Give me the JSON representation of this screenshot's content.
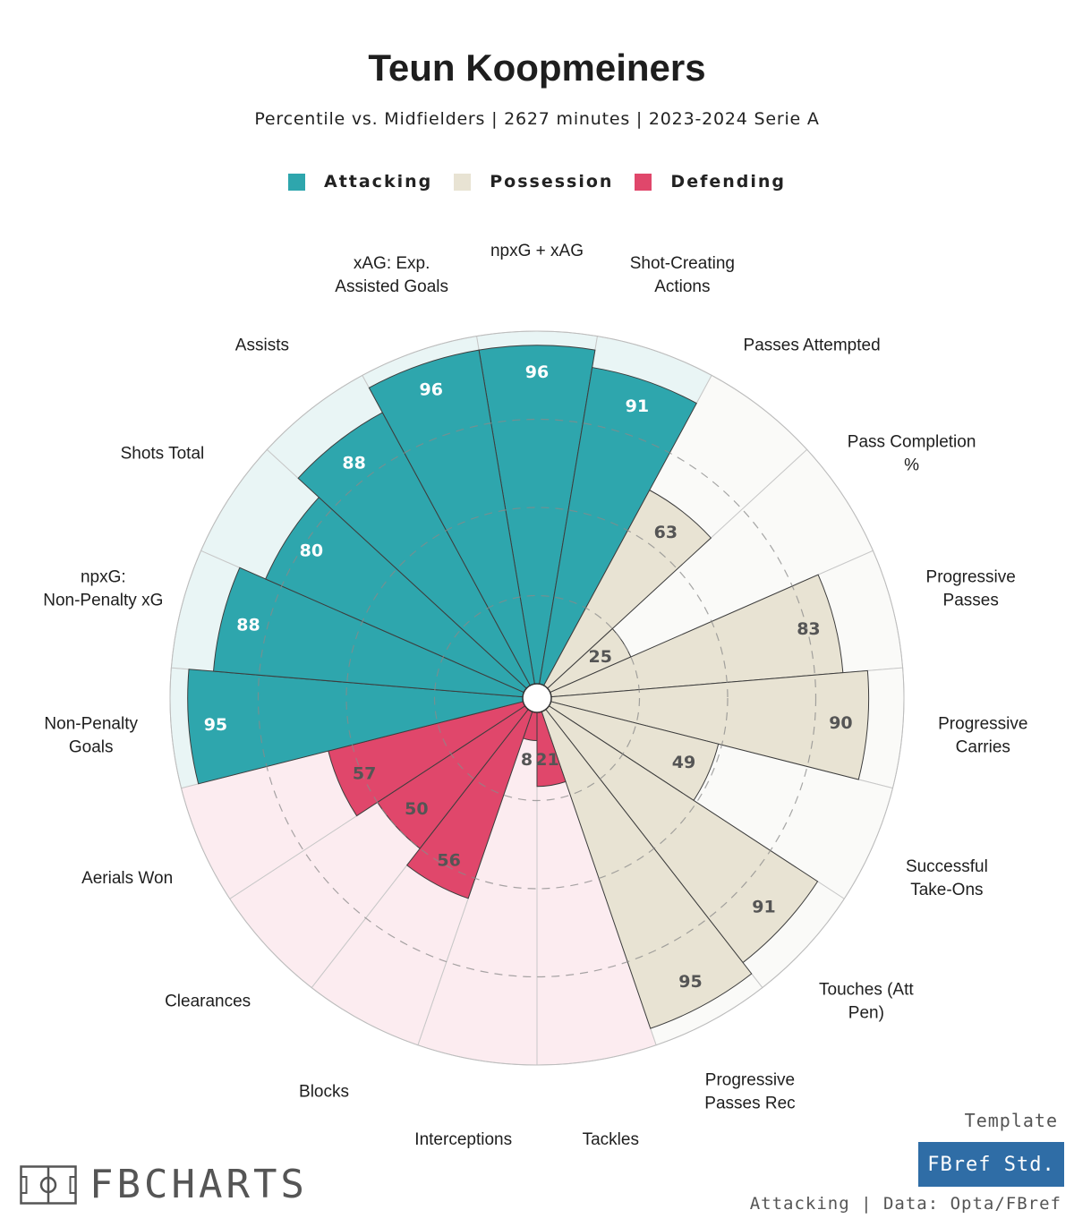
{
  "title": "Teun Koopmeiners",
  "subtitle": "Percentile vs. Midfielders | 2627 minutes | 2023-2024 Serie A",
  "legend": [
    {
      "label": "Attacking",
      "color": "#2ea6ad"
    },
    {
      "label": "Possession",
      "color": "#e8e3d3"
    },
    {
      "label": "Defending",
      "color": "#e0476b"
    }
  ],
  "chart_data": {
    "type": "radial-bar",
    "scale": "percentile",
    "range": [
      0,
      100
    ],
    "categories": [
      "npxG + xAG",
      "Shot-Creating Actions",
      "Passes Attempted",
      "Pass Completion %",
      "Progressive Passes",
      "Progressive Carries",
      "Successful Take-Ons",
      "Touches (Att Pen)",
      "Progressive Passes Rec",
      "Tackles",
      "Interceptions",
      "Blocks",
      "Clearances",
      "Aerials Won",
      "Non-Penalty Goals",
      "npxG: Non-Penalty xG",
      "Shots Total",
      "Assists",
      "xAG: Exp. Assisted Goals"
    ],
    "values": [
      96,
      91,
      63,
      25,
      83,
      90,
      49,
      91,
      95,
      21,
      8,
      56,
      50,
      57,
      95,
      88,
      80,
      88,
      96
    ],
    "groups": [
      "Attacking",
      "Attacking",
      "Possession",
      "Possession",
      "Possession",
      "Possession",
      "Possession",
      "Possession",
      "Possession",
      "Defending",
      "Defending",
      "Defending",
      "Defending",
      "Defending",
      "Attacking",
      "Attacking",
      "Attacking",
      "Attacking",
      "Attacking"
    ],
    "group_colors": {
      "Attacking": {
        "bar": "#2ea6ad",
        "bg": "#e9f5f5",
        "text": "#ffffff"
      },
      "Possession": {
        "bar": "#e8e3d3",
        "bg": "#fafaf8",
        "text": "#555555"
      },
      "Defending": {
        "bar": "#e0476b",
        "bg": "#fcecf0",
        "text": "#555555"
      }
    },
    "reference_circles": [
      25,
      50,
      75
    ]
  },
  "branding": {
    "logo_text": "FBCHARTS",
    "template_label": "Template",
    "template_name": "FBref Std.",
    "footer": "Attacking | Data: Opta/FBref"
  }
}
